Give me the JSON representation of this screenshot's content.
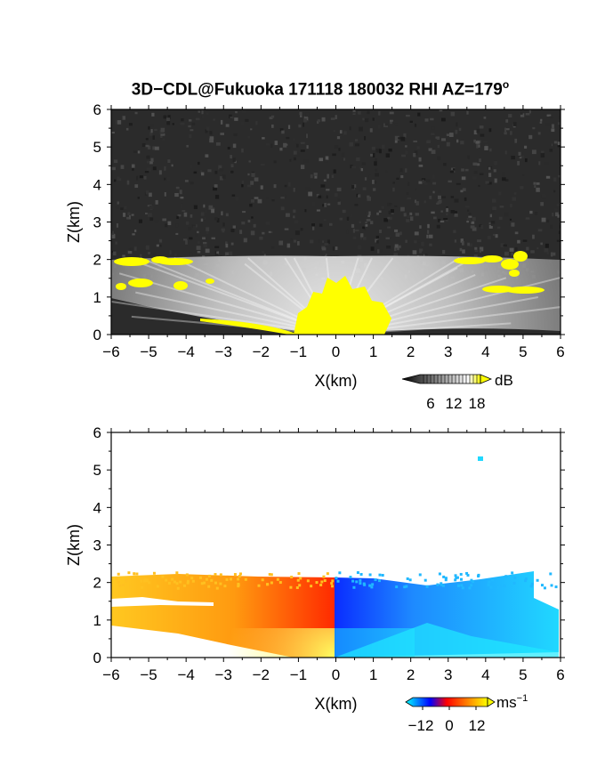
{
  "title": "3D−CDL@Fukuoka 171118 180032 RHI AZ=179",
  "title_degree": "o",
  "chart_data": [
    {
      "type": "heatmap",
      "panel": "backscatter",
      "xlabel": "X(km)",
      "ylabel": "Z(km)",
      "xlim": [
        -6,
        6
      ],
      "ylim": [
        0,
        6
      ],
      "x_ticks": [
        "−6",
        "−5",
        "−4",
        "−3",
        "−2",
        "−1",
        "0",
        "1",
        "2",
        "3",
        "4",
        "5",
        "6"
      ],
      "y_ticks": [
        "0",
        "1",
        "2",
        "3",
        "4",
        "5",
        "6"
      ],
      "colorbar": {
        "unit": "dB",
        "tick_labels": [
          "6",
          "12",
          "18"
        ],
        "range": [
          0,
          20
        ],
        "colors": [
          "#000000",
          "#ffffff",
          "#ffff00"
        ]
      },
      "features": {
        "fan_top_km": 2.1,
        "aerosol_layer_km": [
          1.3,
          2.2
        ],
        "noise_color": "#2b2b2b",
        "saturated_color": "#ffff00"
      }
    },
    {
      "type": "heatmap",
      "panel": "doppler_velocity",
      "xlabel": "X(km)",
      "ylabel": "Z(km)",
      "xlim": [
        -6,
        6
      ],
      "ylim": [
        0,
        6
      ],
      "x_ticks": [
        "−6",
        "−5",
        "−4",
        "−3",
        "−2",
        "−1",
        "0",
        "1",
        "2",
        "3",
        "4",
        "5",
        "6"
      ],
      "y_ticks": [
        "0",
        "1",
        "2",
        "3",
        "4",
        "5",
        "6"
      ],
      "colorbar": {
        "unit": "ms",
        "unit_exponent": "−1",
        "tick_labels": [
          "−12",
          "0",
          "12"
        ],
        "range": [
          -12,
          12
        ],
        "colors": [
          "#00ffff",
          "#0000ff",
          "#ff0000",
          "#ffff00"
        ]
      },
      "features": {
        "echo_top_km": 2.1,
        "left_sign": "positive",
        "right_sign": "negative"
      }
    }
  ]
}
